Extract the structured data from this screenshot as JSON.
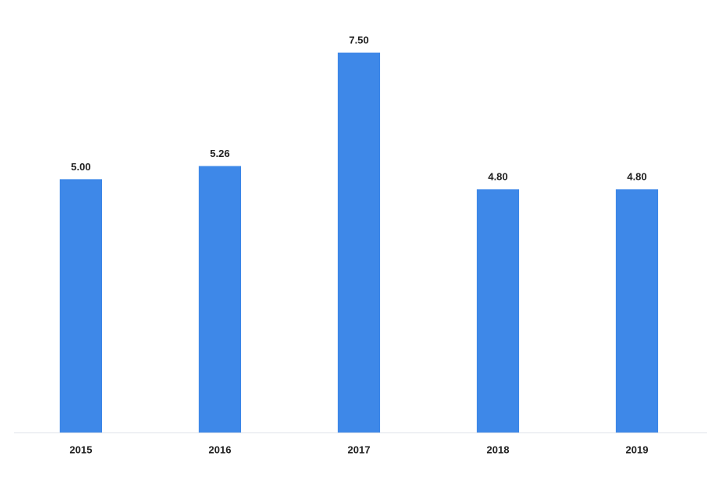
{
  "chart_data": {
    "type": "bar",
    "categories": [
      "2015",
      "2016",
      "2017",
      "2018",
      "2019"
    ],
    "values": [
      5.0,
      5.26,
      7.5,
      4.8,
      4.8
    ],
    "value_labels": [
      "5.00",
      "5.26",
      "7.50",
      "4.80",
      "4.80"
    ],
    "color": "#3e88e8"
  }
}
